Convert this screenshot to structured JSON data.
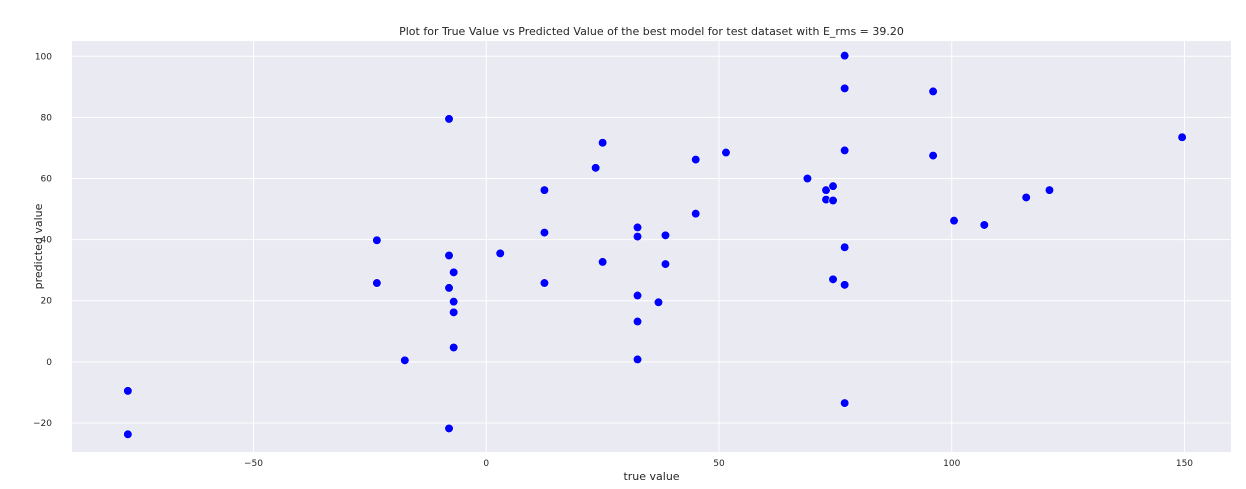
{
  "chart_data": {
    "type": "scatter",
    "title": "Plot for True Value vs Predicted Value of the best model for test dataset with E_rms = 39.20",
    "xlabel": "true value",
    "ylabel": "predicted value",
    "xlim": [
      -89,
      160
    ],
    "ylim": [
      -29.5,
      105
    ],
    "xticks": [
      -50,
      0,
      50,
      100,
      150
    ],
    "yticks": [
      -20,
      0,
      20,
      40,
      60,
      80,
      100
    ],
    "grid": true,
    "marker_color": "#0000ff",
    "background_color": "#eaeaf2",
    "points": [
      {
        "x": -77,
        "y": -9.5
      },
      {
        "x": -77,
        "y": -23.7
      },
      {
        "x": -23.5,
        "y": 39.8
      },
      {
        "x": -23.5,
        "y": 25.8
      },
      {
        "x": -17.5,
        "y": 0.5
      },
      {
        "x": -8,
        "y": 79.5
      },
      {
        "x": -8,
        "y": 34.8
      },
      {
        "x": -8,
        "y": 24.2
      },
      {
        "x": -8,
        "y": -21.8
      },
      {
        "x": -7,
        "y": 29.3
      },
      {
        "x": -7,
        "y": 19.7
      },
      {
        "x": -7,
        "y": 16.2
      },
      {
        "x": -7,
        "y": 4.7
      },
      {
        "x": 3,
        "y": 35.5
      },
      {
        "x": 12.5,
        "y": 56.2
      },
      {
        "x": 12.5,
        "y": 42.3
      },
      {
        "x": 12.5,
        "y": 25.8
      },
      {
        "x": 23.5,
        "y": 63.5
      },
      {
        "x": 25,
        "y": 71.7
      },
      {
        "x": 25,
        "y": 32.7
      },
      {
        "x": 32.5,
        "y": 44.0
      },
      {
        "x": 32.5,
        "y": 41.0
      },
      {
        "x": 32.5,
        "y": 21.7
      },
      {
        "x": 32.5,
        "y": 13.2
      },
      {
        "x": 32.5,
        "y": 0.8
      },
      {
        "x": 37,
        "y": 19.5
      },
      {
        "x": 38.5,
        "y": 41.4
      },
      {
        "x": 38.5,
        "y": 32.0
      },
      {
        "x": 45,
        "y": 66.2
      },
      {
        "x": 45,
        "y": 48.5
      },
      {
        "x": 51.5,
        "y": 68.5
      },
      {
        "x": 69,
        "y": 60.0
      },
      {
        "x": 73,
        "y": 56.2
      },
      {
        "x": 73,
        "y": 53.1
      },
      {
        "x": 74.5,
        "y": 57.5
      },
      {
        "x": 74.5,
        "y": 52.8
      },
      {
        "x": 74.5,
        "y": 27.0
      },
      {
        "x": 77,
        "y": 100.2
      },
      {
        "x": 77,
        "y": 89.5
      },
      {
        "x": 77,
        "y": 69.2
      },
      {
        "x": 77,
        "y": 37.5
      },
      {
        "x": 77,
        "y": 25.2
      },
      {
        "x": 77,
        "y": -13.5
      },
      {
        "x": 96,
        "y": 88.5
      },
      {
        "x": 96,
        "y": 67.5
      },
      {
        "x": 100.5,
        "y": 46.2
      },
      {
        "x": 107,
        "y": 44.8
      },
      {
        "x": 116,
        "y": 53.8
      },
      {
        "x": 121,
        "y": 56.2
      },
      {
        "x": 149.5,
        "y": 73.5
      }
    ]
  }
}
